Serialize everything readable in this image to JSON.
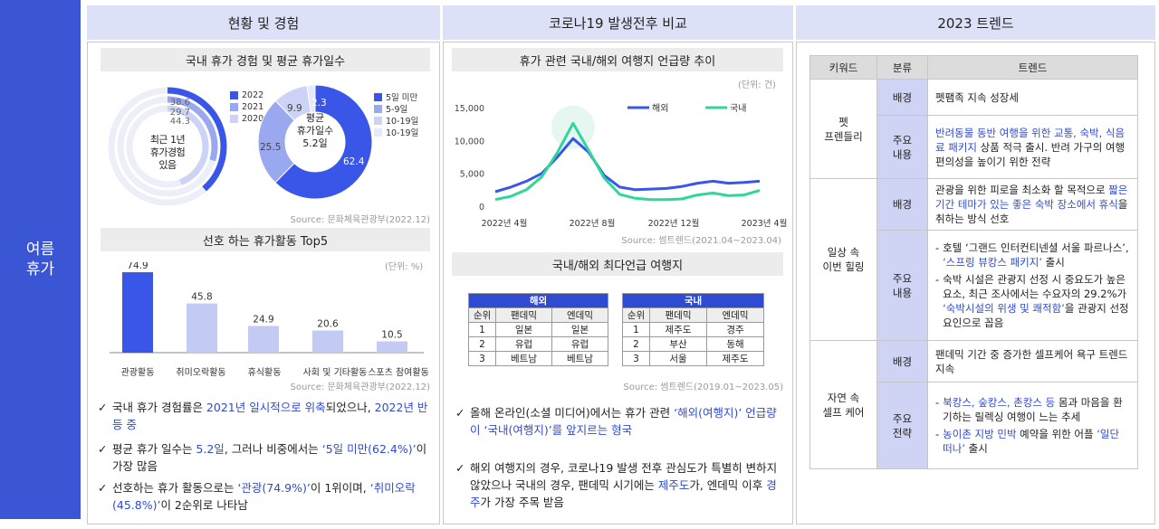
{
  "side_label": "여름\n휴가",
  "columns": [
    {
      "title": "현황 및 경험"
    },
    {
      "title": "코로나19 발생전후 비교"
    },
    {
      "title": "2023 트렌드"
    }
  ],
  "col1": {
    "donut_title": "국내 휴가 경험 및 평균 휴가일수",
    "rings_center": "최근 1년\n휴가경험\n있음",
    "rings_legend": [
      "2022",
      "2021",
      "2020"
    ],
    "rings_values": [
      "38.6",
      "29.7",
      "44.3"
    ],
    "pie_center": "평균\n휴가일수\n5.2일",
    "pie_legend": [
      "5일 미만",
      "5-9일",
      "10-19일",
      "10-19일"
    ],
    "pie_values": [
      "62.4",
      "25.5",
      "9.9",
      "2.3"
    ],
    "source1": "Source: 문화체육관광부(2022.12)",
    "bar_title": "선호 하는 휴가활동 Top5",
    "bar_unit": "(단위: %)",
    "source2": "Source: 문화체육관광부(2022.12)",
    "bullets": [
      [
        {
          "t": "국내 휴가 경험률은 "
        },
        {
          "t": "2021년 일시적으로 위축",
          "h": true
        },
        {
          "t": "되었으나, "
        },
        {
          "t": "2022년 반등 중",
          "h": true
        }
      ],
      [
        {
          "t": "평균 휴가 일수는 "
        },
        {
          "t": "5.2일",
          "h": true
        },
        {
          "t": ", 그러나 비중에서는 "
        },
        {
          "t": "‘5일 미만(62.4%)’",
          "h": true
        },
        {
          "t": "이 가장 많음"
        }
      ],
      [
        {
          "t": "선호하는 휴가 활동으로는 "
        },
        {
          "t": "‘관광(74.9%)’",
          "h": true
        },
        {
          "t": "이 1위이며, "
        },
        {
          "t": "‘취미오락(45.8%)’",
          "h": true
        },
        {
          "t": "이 2순위로 나타남"
        }
      ]
    ]
  },
  "col2": {
    "line_title": "휴가 관련 국내/해외 여행지 언급량 추이",
    "line_unit": "(단위: 건)",
    "source1": "Source: 썸트렌드(2021.04~2023.04)",
    "table_title": "국내/해외 최다언급 여행지",
    "overseas": {
      "title": "해외",
      "headers": [
        "순위",
        "팬데믹",
        "엔데믹"
      ],
      "rows": [
        [
          "1",
          "일본",
          "일본"
        ],
        [
          "2",
          "유럽",
          "유럽"
        ],
        [
          "3",
          "베트남",
          "베트남"
        ]
      ]
    },
    "domestic": {
      "title": "국내",
      "headers": [
        "순위",
        "팬데믹",
        "엔데믹"
      ],
      "rows": [
        [
          "1",
          "제주도",
          "경주"
        ],
        [
          "2",
          "부산",
          "동해"
        ],
        [
          "3",
          "서울",
          "제주도"
        ]
      ]
    },
    "source2": "Source: 썸트렌드(2019.01~2023.05)",
    "bullets": [
      [
        {
          "t": "올해 온라인(소셜 미디어)에서는 휴가 관련 "
        },
        {
          "t": "‘해외(여행지)’ 언급량이 ‘국내(여행지)’를 앞지르는 형국",
          "h": true
        }
      ],
      [
        {
          "t": "해외 여행지의 경우, 코로나19 발생 전후 관심도가 특별히 변하지 않았으나 국내의 경우, 팬데믹 시기에는 "
        },
        {
          "t": "제주도",
          "h": true
        },
        {
          "t": "가, 엔데믹 이후 "
        },
        {
          "t": "경주",
          "h": true
        },
        {
          "t": "가 가장 주목 받음"
        }
      ]
    ]
  },
  "col3": {
    "headers": [
      "키워드",
      "분류",
      "트렌드"
    ],
    "groups": [
      {
        "keyword": "펫\n프렌들리",
        "rows": [
          {
            "cat": "배경",
            "segs": [
              {
                "t": "펫팸족 지속 성장세"
              }
            ]
          },
          {
            "cat": "주요\n내용",
            "segs": [
              {
                "t": "반려동물 동반 여행을 위한 교통, 숙박, 식음료 패키지",
                "h": true
              },
              {
                "t": " 상품 적극 출시. 반려 가구의 여행 편의성을 높이기 위한 전략"
              }
            ]
          }
        ]
      },
      {
        "keyword": "일상 속\n이번 힐링",
        "rows": [
          {
            "cat": "배경",
            "segs": [
              {
                "t": "관광을 위한 피로을 최소화 할 목적으로 "
              },
              {
                "t": "짧은 기간 테마가 있는 좋은 숙박 장소에서 휴식",
                "h": true
              },
              {
                "t": "을 취하는 방식 선호"
              }
            ]
          },
          {
            "cat": "주요\n내용",
            "items": [
              [
                {
                  "t": "호텔 ‘그랜드 인터컨티넨셜 서울 파르나스’, "
                },
                {
                  "t": "‘스프링 뷰캉스 패키지’",
                  "h": true
                },
                {
                  "t": " 출시"
                }
              ],
              [
                {
                  "t": "숙박 시설은 관광지 선정 시 중요도가 높은 요소, 최근 조사에서는 수요자의 29.2%가 "
                },
                {
                  "t": "‘숙박시설의 위생 및 쾌적함’",
                  "h": true
                },
                {
                  "t": "을 관광지 선정 요인으로 꼽음"
                }
              ]
            ]
          }
        ]
      },
      {
        "keyword": "자연 속\n셀프 케어",
        "rows": [
          {
            "cat": "배경",
            "segs": [
              {
                "t": "팬데믹 기간 중 증가한 셀프케어 욕구 트렌드 지속"
              }
            ]
          },
          {
            "cat": "주요\n전략",
            "items": [
              [
                {
                  "t": "북캉스, 숲캉스, 촌캉스 등",
                  "h": true
                },
                {
                  "t": " 몸과 마음을 환기하는 릴렉싱 여행이 느는 추세"
                }
              ],
              [
                {
                  "t": "농이촌 지방 민박",
                  "h": true
                },
                {
                  "t": " 예약을 위한 어플 "
                },
                {
                  "t": "‘일단 떠나’",
                  "h": true
                },
                {
                  "t": " 출시"
                }
              ]
            ]
          }
        ]
      }
    ]
  },
  "chart_data": [
    {
      "type": "pie",
      "title": "국내 휴가 경험",
      "series": [
        {
          "name": "2022",
          "values": [
            38.6
          ]
        },
        {
          "name": "2021",
          "values": [
            29.7
          ]
        },
        {
          "name": "2020",
          "values": [
            44.3
          ]
        }
      ],
      "colors": [
        "#3a56e8",
        "#9aa8f0",
        "#ccd3f6"
      ]
    },
    {
      "type": "pie",
      "title": "평균 휴가일수",
      "categories": [
        "5일 미만",
        "5-9일",
        "10-19일",
        "10-19일"
      ],
      "values": [
        62.4,
        25.5,
        9.9,
        2.3
      ],
      "colors": [
        "#3a56e8",
        "#9aa8f0",
        "#ccd3f6",
        "#e6e9fa"
      ]
    },
    {
      "type": "bar",
      "title": "선호 하는 휴가활동 Top5",
      "categories": [
        "관광활동",
        "취미오락활동",
        "휴식활동",
        "사회 및 기타활동",
        "스포츠 참여활동"
      ],
      "values": [
        74.9,
        45.8,
        24.9,
        20.6,
        10.5
      ],
      "ylim": [
        0,
        80
      ],
      "colors": [
        "#3a56e8",
        "#c3caf4",
        "#c3caf4",
        "#c3caf4",
        "#c3caf4"
      ]
    },
    {
      "type": "line",
      "title": "휴가 관련 국내/해외 여행지 언급량 추이",
      "x_ticks": [
        "2022년 4월",
        "2022년 8월",
        "2022년 12월",
        "2023년 4월"
      ],
      "y_ticks": [
        "0",
        "5,000",
        "10,000",
        "15,000"
      ],
      "ylim": [
        0,
        15000
      ],
      "series": [
        {
          "name": "해외",
          "color": "#3a56e8",
          "values": [
            2200,
            2900,
            3800,
            5000,
            7500,
            10300,
            8200,
            4700,
            2900,
            2500,
            2600,
            2700,
            3000,
            3500,
            3800,
            3500,
            3600,
            3800
          ]
        },
        {
          "name": "국내",
          "color": "#2fd69a",
          "values": [
            1000,
            1500,
            2500,
            4500,
            8200,
            12600,
            8500,
            4300,
            1800,
            1200,
            1000,
            1000,
            1100,
            1700,
            2000,
            1600,
            1700,
            2400
          ]
        }
      ]
    }
  ]
}
